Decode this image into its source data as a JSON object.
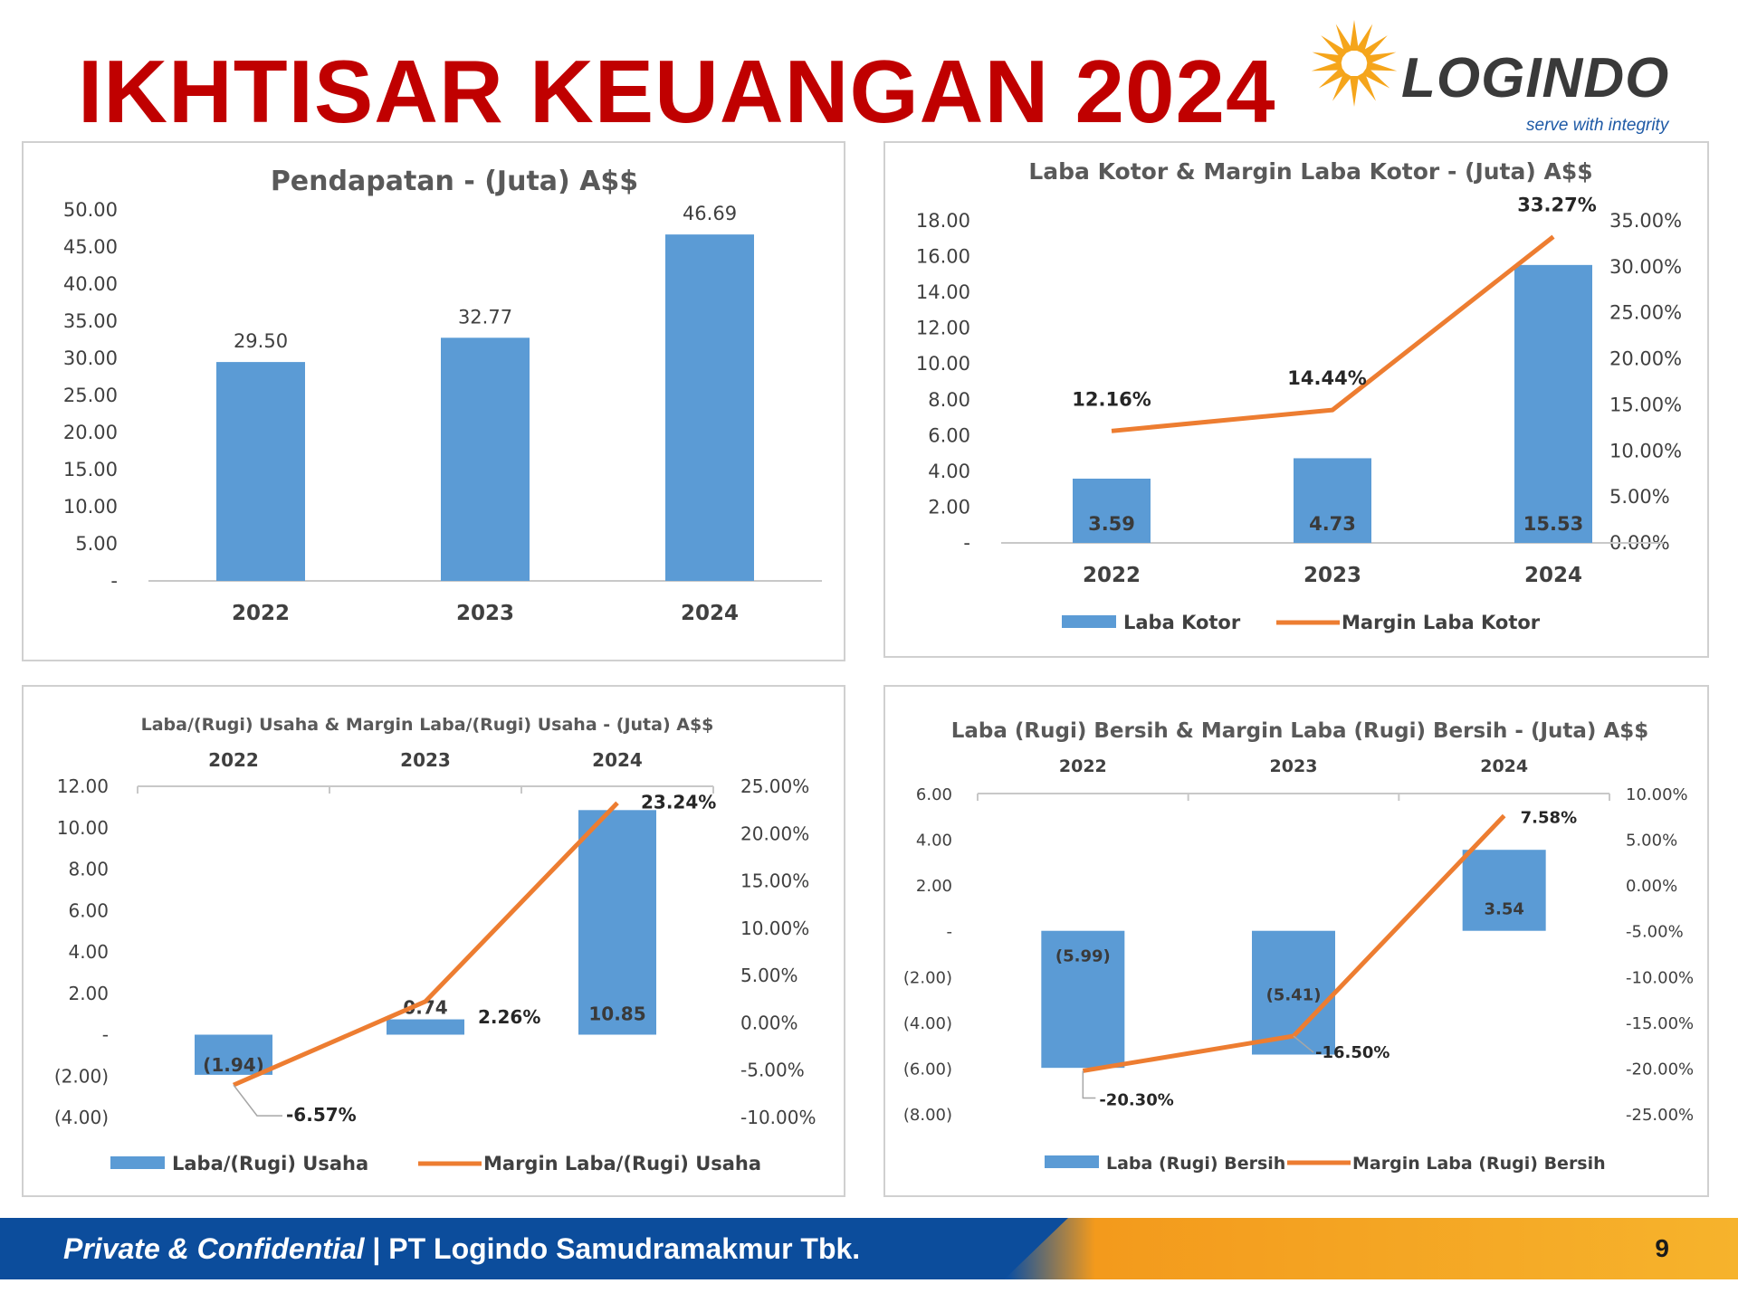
{
  "page": {
    "title": "IKHTISAR KEUANGAN 2024",
    "logo": {
      "text": "LOGINDO",
      "tagline": "serve with integrity"
    },
    "footer": {
      "confidential": "Private & Confidential",
      "separator": " | ",
      "company": "PT Logindo Samudramakmur Tbk.",
      "page_number": "9"
    }
  },
  "colors": {
    "bar": "#5b9bd5",
    "line": "#ed7d31",
    "title_red": "#c00000",
    "axis_text": "#404040"
  },
  "chart_data": [
    {
      "type": "bar",
      "title": "Pendapatan - (Juta) A$$",
      "categories": [
        "2022",
        "2023",
        "2024"
      ],
      "values": [
        29.5,
        32.77,
        46.69
      ],
      "value_labels": [
        "29.50",
        "32.77",
        "46.69"
      ],
      "ylim": [
        0,
        50
      ],
      "y_ticks": [
        "-",
        "5.00",
        "10.00",
        "15.00",
        "20.00",
        "25.00",
        "30.00",
        "35.00",
        "40.00",
        "45.00",
        "50.00"
      ],
      "legend": "none"
    },
    {
      "type": "bar+line",
      "title": "Laba Kotor & Margin Laba Kotor - (Juta) A$$",
      "categories": [
        "2022",
        "2023",
        "2024"
      ],
      "series": [
        {
          "name": "Laba Kotor",
          "type": "bar",
          "axis": "left",
          "values": [
            3.59,
            4.73,
            15.53
          ],
          "labels": [
            "3.59",
            "4.73",
            "15.53"
          ]
        },
        {
          "name": "Margin Laba Kotor",
          "type": "line",
          "axis": "right",
          "values": [
            12.16,
            14.44,
            33.27
          ],
          "labels": [
            "12.16%",
            "14.44%",
            "33.27%"
          ]
        }
      ],
      "ylim": [
        0,
        18
      ],
      "y2lim": [
        0,
        35
      ],
      "y_ticks": [
        "-",
        "2.00",
        "4.00",
        "6.00",
        "8.00",
        "10.00",
        "12.00",
        "14.00",
        "16.00",
        "18.00"
      ],
      "y2_ticks": [
        "0.00%",
        "5.00%",
        "10.00%",
        "15.00%",
        "20.00%",
        "25.00%",
        "30.00%",
        "35.00%"
      ],
      "legend": "bottom"
    },
    {
      "type": "bar+line",
      "title": "Laba/(Rugi) Usaha & Margin Laba/(Rugi) Usaha - (Juta) A$$",
      "categories": [
        "2022",
        "2023",
        "2024"
      ],
      "series": [
        {
          "name": "Laba/(Rugi) Usaha",
          "type": "bar",
          "axis": "left",
          "values": [
            -1.94,
            0.74,
            10.85
          ],
          "labels": [
            "(1.94)",
            "0.74",
            "10.85"
          ]
        },
        {
          "name": "Margin Laba/(Rugi) Usaha",
          "type": "line",
          "axis": "right",
          "values": [
            -6.57,
            2.26,
            23.24
          ],
          "labels": [
            "-6.57%",
            "2.26%",
            "23.24%"
          ]
        }
      ],
      "ylim": [
        -4,
        12
      ],
      "y2lim": [
        -10,
        25
      ],
      "y_ticks": [
        "(4.00)",
        "(2.00)",
        "-",
        "2.00",
        "4.00",
        "6.00",
        "8.00",
        "10.00",
        "12.00"
      ],
      "y2_ticks": [
        "-10.00%",
        "-5.00%",
        "0.00%",
        "5.00%",
        "10.00%",
        "15.00%",
        "20.00%",
        "25.00%"
      ],
      "legend": "bottom"
    },
    {
      "type": "bar+line",
      "title": "Laba (Rugi) Bersih & Margin Laba (Rugi) Bersih - (Juta) A$$",
      "categories": [
        "2022",
        "2023",
        "2024"
      ],
      "series": [
        {
          "name": "Laba (Rugi) Bersih",
          "type": "bar",
          "axis": "left",
          "values": [
            -5.99,
            -5.41,
            3.54
          ],
          "labels": [
            "(5.99)",
            "(5.41)",
            "3.54"
          ]
        },
        {
          "name": "Margin Laba (Rugi) Bersih",
          "type": "line",
          "axis": "right",
          "values": [
            -20.3,
            -16.5,
            7.58
          ],
          "labels": [
            "-20.30%",
            "-16.50%",
            "7.58%"
          ]
        }
      ],
      "ylim": [
        -8,
        6
      ],
      "y2lim": [
        -25,
        10
      ],
      "y_ticks": [
        "(8.00)",
        "(6.00)",
        "(4.00)",
        "(2.00)",
        "-",
        "2.00",
        "4.00",
        "6.00"
      ],
      "y2_ticks": [
        "-25.00%",
        "-20.00%",
        "-15.00%",
        "-10.00%",
        "-5.00%",
        "0.00%",
        "5.00%",
        "10.00%"
      ],
      "legend": "bottom"
    }
  ]
}
